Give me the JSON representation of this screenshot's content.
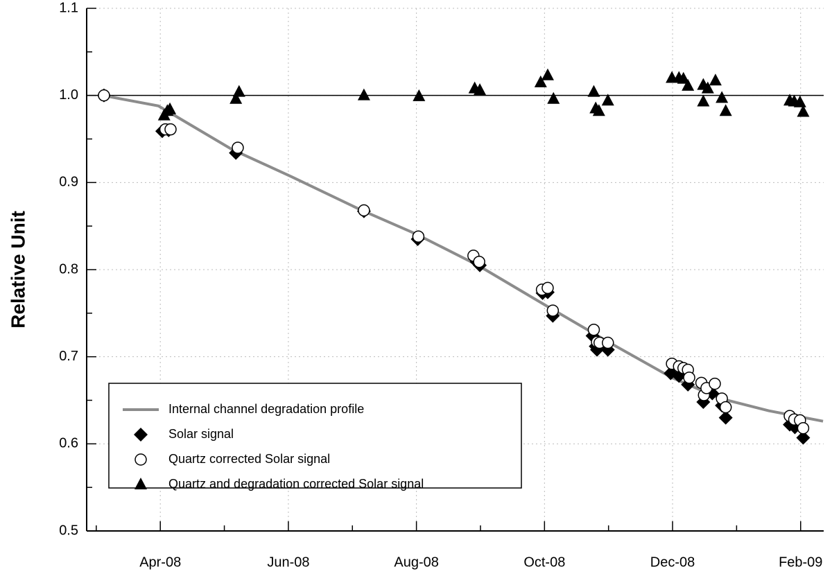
{
  "chart_data": {
    "type": "scatter",
    "ylabel": "Relative Unit",
    "xlim": [
      2.85,
      14.36
    ],
    "ylim": [
      0.5,
      1.1
    ],
    "xticks": [
      {
        "value": 4,
        "label": "Apr-08"
      },
      {
        "value": 6,
        "label": "Jun-08"
      },
      {
        "value": 8,
        "label": "Aug-08"
      },
      {
        "value": 10,
        "label": "Oct-08"
      },
      {
        "value": 12,
        "label": "Dec-08"
      },
      {
        "value": 14,
        "label": "Feb-09"
      }
    ],
    "xminorticks": [
      3,
      5,
      7,
      9,
      11,
      13
    ],
    "yticks": [
      0.5,
      0.6,
      0.7,
      0.8,
      0.9,
      {
        "value": 1,
        "label": "1.0"
      },
      1.1
    ],
    "yminorticks": [
      0.55,
      0.65,
      0.75,
      0.85,
      0.95,
      1.05
    ],
    "grid": true,
    "hline": 1,
    "legend": "lower left",
    "series": [
      {
        "name": "Internal channel degradation profile",
        "style": "line",
        "color": "#8c8c8c",
        "x": [
          3.1,
          3.97,
          5.12,
          6.04,
          7.12,
          7.99,
          8.96,
          10.04,
          11.02,
          11.99,
          12.75,
          13.5,
          14.35
        ],
        "values": [
          1.0,
          0.988,
          0.938,
          0.907,
          0.869,
          0.841,
          0.805,
          0.758,
          0.716,
          0.676,
          0.652,
          0.638,
          0.626
        ]
      },
      {
        "name": "Solar signal",
        "style": "diamond",
        "color": "#000000",
        "x": [
          3.12,
          4.03,
          4.13,
          5.18,
          7.18,
          8.02,
          8.94,
          8.99,
          9.97,
          10.05,
          10.13,
          10.75,
          10.8,
          10.82,
          10.99,
          11.97,
          12.1,
          12.24,
          12.48,
          12.62,
          12.77,
          12.83,
          13.83,
          13.91,
          14.04
        ],
        "values": [
          1.0,
          0.959,
          0.96,
          0.934,
          0.867,
          0.835,
          0.809,
          0.805,
          0.773,
          0.774,
          0.747,
          0.724,
          0.712,
          0.708,
          0.708,
          0.681,
          0.678,
          0.668,
          0.648,
          0.658,
          0.644,
          0.63,
          0.622,
          0.619,
          0.607
        ]
      },
      {
        "name": "Quartz corrected Solar signal",
        "style": "circle",
        "color": "#000000",
        "x": [
          3.12,
          4.08,
          4.16,
          5.21,
          7.18,
          8.03,
          8.89,
          8.98,
          9.96,
          10.05,
          10.13,
          10.77,
          10.82,
          10.86,
          10.99,
          11.99,
          12.1,
          12.17,
          12.24,
          12.26,
          12.45,
          12.49,
          12.53,
          12.66,
          12.77,
          12.83,
          13.83,
          13.9,
          13.99,
          14.04
        ],
        "values": [
          1.0,
          0.961,
          0.961,
          0.94,
          0.868,
          0.838,
          0.816,
          0.809,
          0.777,
          0.779,
          0.753,
          0.731,
          0.717,
          0.716,
          0.716,
          0.692,
          0.689,
          0.687,
          0.685,
          0.676,
          0.67,
          0.656,
          0.664,
          0.669,
          0.652,
          0.642,
          0.632,
          0.628,
          0.627,
          0.618
        ]
      },
      {
        "name": "Quartz and degradation corrected Solar signal",
        "style": "triangle",
        "color": "#000000",
        "x": [
          4.06,
          4.11,
          4.15,
          5.18,
          5.23,
          7.18,
          8.04,
          8.91,
          8.99,
          9.94,
          10.05,
          10.14,
          10.77,
          10.8,
          10.85,
          10.99,
          11.99,
          12.1,
          12.17,
          12.24,
          12.48,
          12.48,
          12.55,
          12.67,
          12.77,
          12.83,
          13.83,
          13.9,
          13.99,
          14.04
        ],
        "values": [
          0.977,
          0.982,
          0.984,
          0.996,
          1.004,
          1.0,
          0.999,
          1.008,
          1.006,
          1.015,
          1.023,
          0.996,
          1.004,
          0.985,
          0.982,
          0.994,
          1.02,
          1.02,
          1.019,
          1.011,
          0.993,
          1.012,
          1.008,
          1.017,
          0.997,
          0.982,
          0.994,
          0.993,
          0.992,
          0.981
        ]
      }
    ]
  }
}
